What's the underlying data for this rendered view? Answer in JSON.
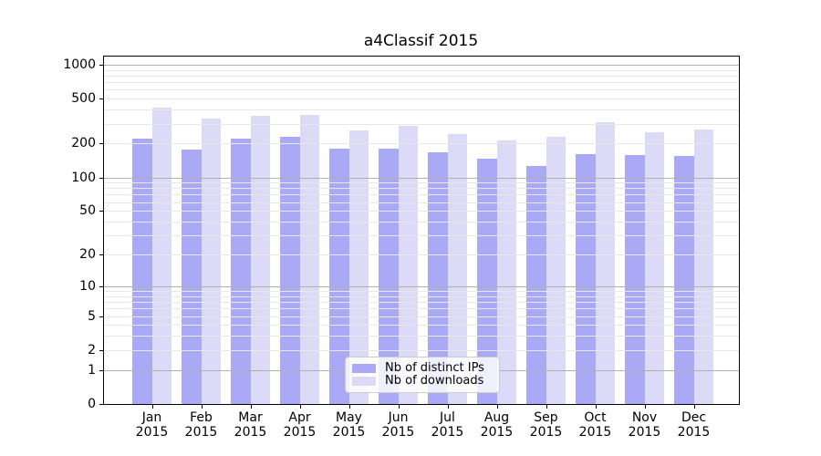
{
  "chart_data": {
    "type": "bar",
    "title": "a4Classif 2015",
    "x_tick_year": "2015",
    "months": [
      "Jan",
      "Feb",
      "Mar",
      "Apr",
      "May",
      "Jun",
      "Jul",
      "Aug",
      "Sep",
      "Oct",
      "Nov",
      "Dec"
    ],
    "series": [
      {
        "name": "Nb of distinct IPs",
        "color": "#a9a9f5",
        "values": [
          220,
          178,
          220,
          230,
          180,
          181,
          166,
          146,
          126,
          162,
          158,
          154
        ]
      },
      {
        "name": "Nb of downloads",
        "color": "#dbdbf8",
        "values": [
          415,
          335,
          352,
          358,
          264,
          287,
          243,
          215,
          228,
          307,
          254,
          266
        ]
      }
    ],
    "yscale": "log1p",
    "yticks": [
      0,
      1,
      2,
      5,
      10,
      20,
      50,
      100,
      200,
      500,
      1000
    ],
    "ylim": [
      0,
      1200
    ],
    "grid": true,
    "legend_position": "lower center",
    "colors": {
      "major_grid": "#b0b0b0",
      "minor_grid": "#e8e8e8",
      "spine": "#000000",
      "background": "#ffffff",
      "text": "#000000"
    }
  }
}
